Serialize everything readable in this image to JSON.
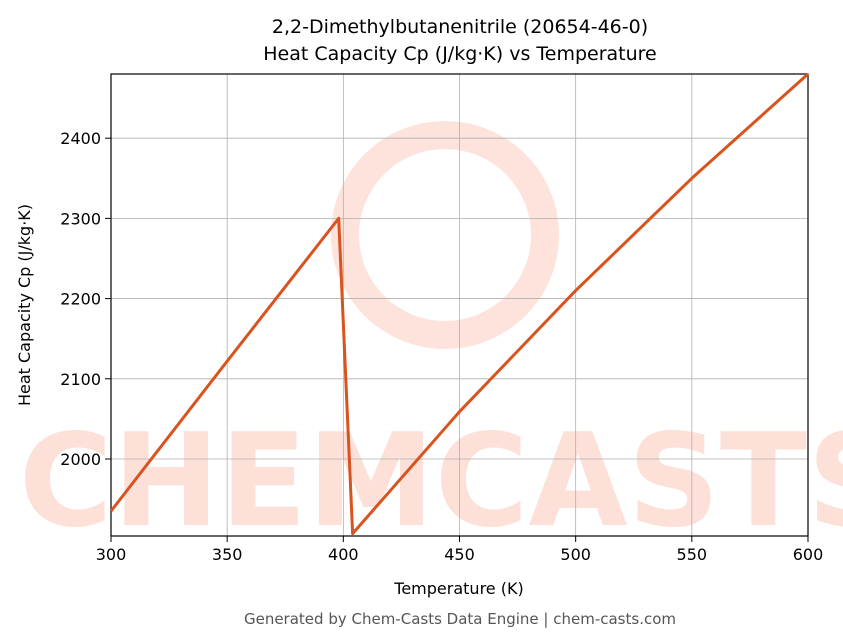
{
  "chart_data": {
    "type": "line",
    "title": "2,2-Dimethylbutanenitrile (20654-46-0)",
    "subtitle": "Heat Capacity Cp (J/kg·K) vs Temperature",
    "x_label": "Temperature (K)",
    "y_label": "Heat Capacity Cp (J/kg·K)",
    "watermark": "CHEMCASTS",
    "footer": "Generated by Chem-Casts Data Engine | chem-casts.com",
    "x": [
      300,
      350,
      398,
      404,
      450,
      500,
      550,
      600
    ],
    "series": [
      {
        "name": "Heat Capacity Cp",
        "color": "#d9531e",
        "values": [
          1935,
          2122,
          2300,
          1907,
          2059,
          2210,
          2350,
          2480
        ]
      }
    ],
    "xlim": [
      300,
      600
    ],
    "xticks": [
      300,
      350,
      400,
      450,
      500,
      550,
      600
    ],
    "ylim": [
      1904,
      2480
    ],
    "yticks": [
      2000,
      2100,
      2200,
      2300,
      2400
    ],
    "grid": true
  }
}
